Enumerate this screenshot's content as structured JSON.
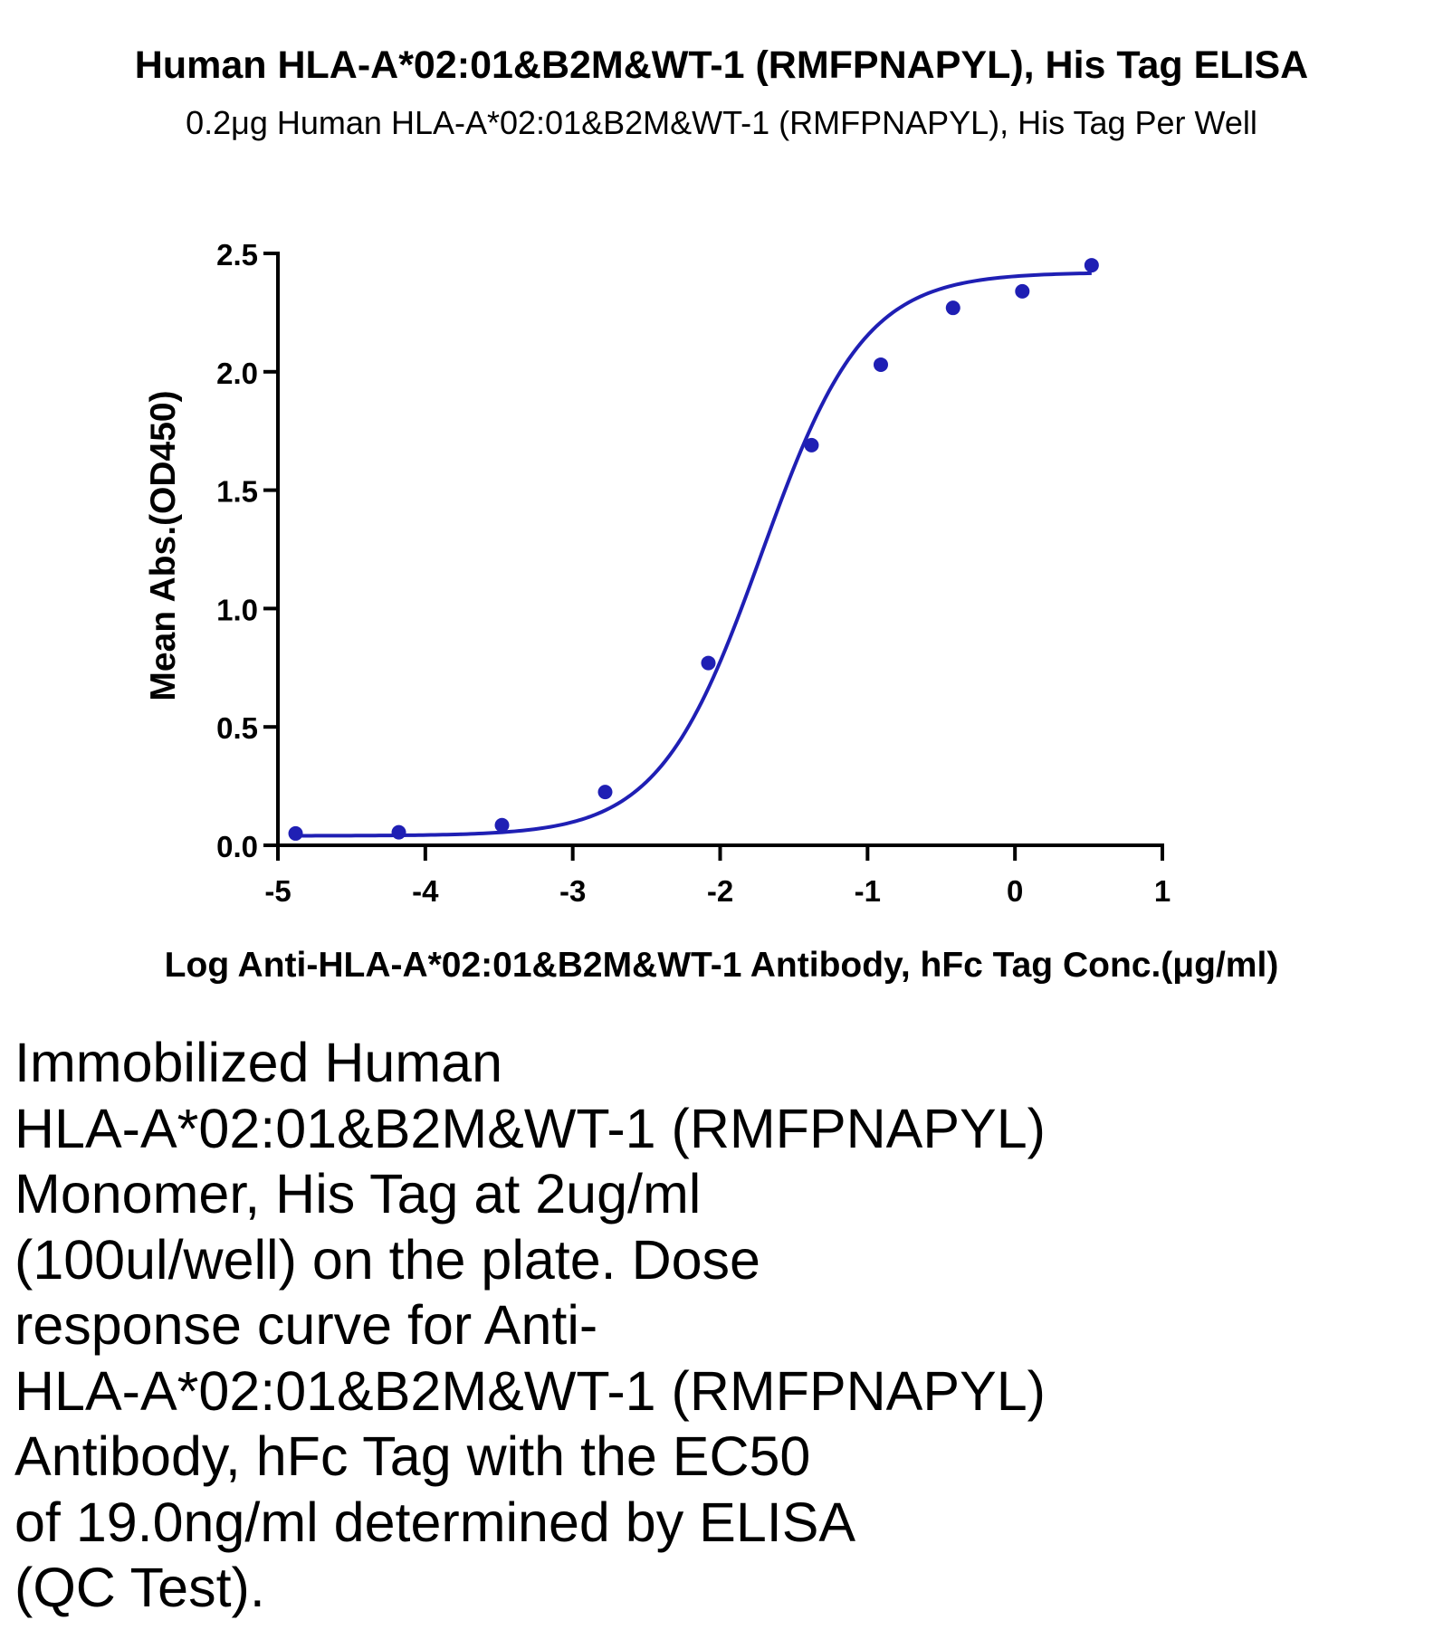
{
  "chart_data": {
    "type": "scatter",
    "title": "Human HLA-A*02:01&B2M&WT-1 (RMFPNAPYL), His Tag ELISA",
    "subtitle": "0.2μg Human HLA-A*02:01&B2M&WT-1 (RMFPNAPYL), His Tag Per Well",
    "xlabel": "Log Anti-HLA-A*02:01&B2M&WT-1 Antibody, hFc Tag Conc.(μg/ml)",
    "ylabel": "Mean Abs.(OD450)",
    "xlim": [
      -5,
      1
    ],
    "ylim": [
      0.0,
      2.5
    ],
    "x_ticks": [
      "-5",
      "-4",
      "-3",
      "-2",
      "-1",
      "0",
      "1"
    ],
    "y_ticks": [
      "0.0",
      "0.5",
      "1.0",
      "1.5",
      "2.0",
      "2.5"
    ],
    "grid": false,
    "color": "#1f1fb4",
    "series": [
      {
        "points": [
          {
            "x": -4.88,
            "y": 0.05
          },
          {
            "x": -4.18,
            "y": 0.055
          },
          {
            "x": -3.48,
            "y": 0.085
          },
          {
            "x": -2.78,
            "y": 0.225
          },
          {
            "x": -2.08,
            "y": 0.77
          },
          {
            "x": -1.38,
            "y": 1.69
          },
          {
            "x": -0.91,
            "y": 2.03
          },
          {
            "x": -0.42,
            "y": 2.27
          },
          {
            "x": 0.05,
            "y": 2.34
          },
          {
            "x": 0.52,
            "y": 2.45
          }
        ],
        "fit": {
          "model": "4PL",
          "bottom": 0.04,
          "top": 2.42,
          "log_ec50": -1.72,
          "hill_slope": 1.25,
          "x_range": [
            -4.88,
            0.52
          ]
        }
      }
    ]
  },
  "caption": {
    "text": "Immobilized Human\nHLA-A*02:01&B2M&WT-1 (RMFPNAPYL)\nMonomer, His Tag at 2ug/ml\n(100ul/well) on the plate. Dose\nresponse curve for Anti-\nHLA-A*02:01&B2M&WT-1 (RMFPNAPYL)\nAntibody, hFc Tag with the EC50\nof 19.0ng/ml determined by ELISA\n(QC Test)."
  }
}
